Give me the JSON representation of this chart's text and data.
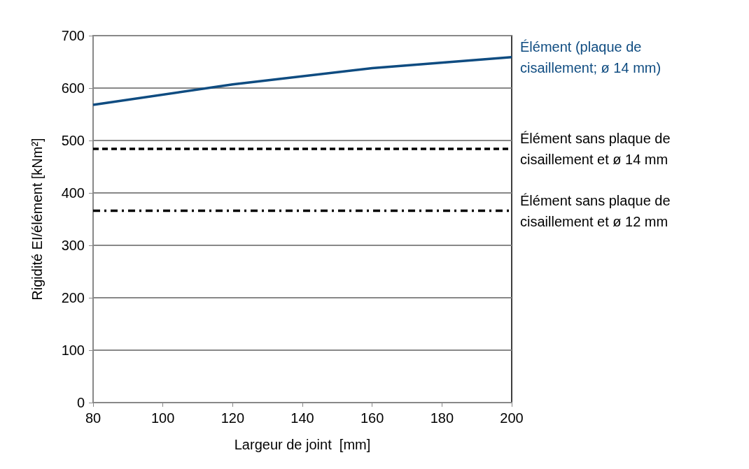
{
  "chart_data": {
    "type": "line",
    "xlabel": "Largeur de joint  [mm]",
    "ylabel": "Rigidité EI/élément [kNm²]",
    "xlim": [
      80,
      200
    ],
    "xticks": [
      80,
      100,
      120,
      140,
      160,
      180,
      200
    ],
    "ylim": [
      0,
      700
    ],
    "yticks": [
      0,
      100,
      200,
      300,
      400,
      500,
      600,
      700
    ],
    "grid": "y",
    "legend": false,
    "marker": "none",
    "series": [
      {
        "name": "Élément (plaque de cisaillement; ø 14 mm)",
        "color": "#0f4c81",
        "x": [
          80,
          120,
          160,
          200
        ],
        "values": [
          568,
          607,
          638,
          659
        ],
        "line_style": "solid"
      },
      {
        "name": "Élément sans plaque de cisaillement et ø 14 mm",
        "color": "#000000",
        "x": [
          80,
          200
        ],
        "values": [
          484,
          484
        ],
        "line_style": "dashed"
      },
      {
        "name": "Élément sans plaque de cisaillement et ø 12 mm",
        "color": "#000000",
        "x": [
          80,
          200
        ],
        "values": [
          366,
          366
        ],
        "line_style": "dashdot"
      }
    ]
  }
}
